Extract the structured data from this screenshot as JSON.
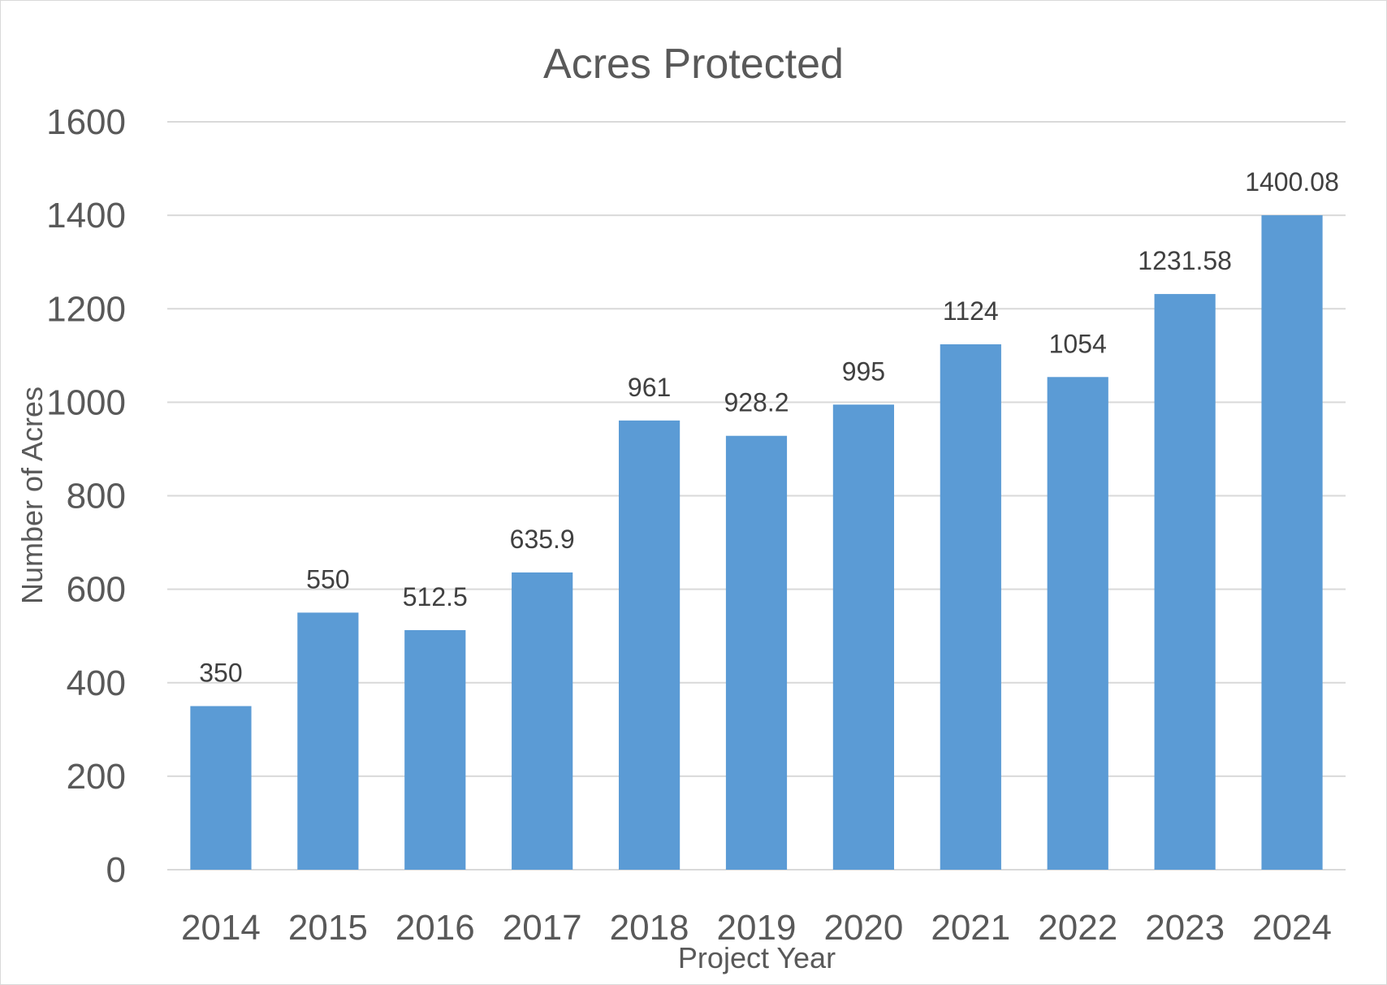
{
  "chart_data": {
    "type": "bar",
    "title": "Acres Protected",
    "xlabel": "Project Year",
    "ylabel": "Number of Acres",
    "categories": [
      "2014",
      "2015",
      "2016",
      "2017",
      "2018",
      "2019",
      "2020",
      "2021",
      "2022",
      "2023",
      "2024"
    ],
    "values": [
      350,
      550,
      512.5,
      635.9,
      961,
      928.2,
      995,
      1124,
      1054,
      1231.58,
      1400.08
    ],
    "data_labels": [
      "350",
      "550",
      "512.5",
      "635.9",
      "961",
      "928.2",
      "995",
      "1124",
      "1054",
      "1231.58",
      "1400.08"
    ],
    "ylim": [
      0,
      1600
    ],
    "yticks": [
      0,
      200,
      400,
      600,
      800,
      1000,
      1200,
      1400,
      1600
    ],
    "grid": true,
    "legend": "none",
    "bar_color": "#5b9bd5"
  }
}
